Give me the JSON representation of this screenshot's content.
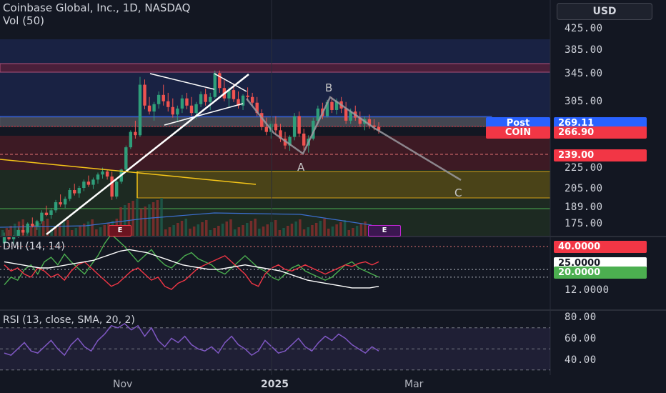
{
  "header": {
    "title": "Coinbase Global, Inc., 1D, NASDAQ",
    "volume_indicator": "Vol (50)",
    "dmi_title": "DMI (14, 14)",
    "rsi_title": "RSI (13, close, SMA, 20, 2)"
  },
  "currency_button": "USD",
  "badges": {
    "post_label": "Post",
    "post_price": "269.11",
    "coin_label": "COIN",
    "coin_price": "266.90",
    "level_price": "239.00",
    "earnings": "E"
  },
  "wave_labels": {
    "a": "A",
    "b": "B",
    "c": "C"
  },
  "colors": {
    "background": "#131722",
    "up": "#2f9e7a",
    "down": "#ef5350",
    "post_badge": "#2962ff",
    "coin_badge": "#f23645",
    "dmi_plus": "#4caf50",
    "dmi_minus": "#f23645",
    "adx": "#ffffff",
    "rsi": "#7e57c2"
  },
  "chart_data": [
    {
      "type": "candlestick",
      "title": "Coinbase Global, Inc., 1D, NASDAQ",
      "price_scale_ticks": [
        "425.00",
        "385.00",
        "345.00",
        "305.00",
        "225.00",
        "205.00",
        "189.00",
        "175.00"
      ],
      "x_ticks": [
        "Nov",
        "2025",
        "Mar"
      ],
      "log_scale": true,
      "last_price": 266.9,
      "post_market_price": 269.11,
      "marked_level": 239.0,
      "wave_points": {
        "B": 308,
        "A": 242,
        "C": 210
      },
      "ohlc_approx": [
        [
          160,
          168,
          158,
          165
        ],
        [
          165,
          170,
          162,
          163
        ],
        [
          163,
          166,
          160,
          165
        ],
        [
          165,
          172,
          164,
          170
        ],
        [
          170,
          174,
          166,
          168
        ],
        [
          168,
          176,
          167,
          175
        ],
        [
          175,
          180,
          172,
          173
        ],
        [
          173,
          178,
          170,
          177
        ],
        [
          177,
          186,
          175,
          184
        ],
        [
          184,
          190,
          181,
          182
        ],
        [
          182,
          188,
          179,
          186
        ],
        [
          186,
          195,
          184,
          193
        ],
        [
          193,
          200,
          189,
          191
        ],
        [
          191,
          198,
          188,
          196
        ],
        [
          196,
          206,
          194,
          204
        ],
        [
          204,
          210,
          199,
          201
        ],
        [
          201,
          208,
          197,
          206
        ],
        [
          206,
          214,
          203,
          212
        ],
        [
          212,
          218,
          207,
          209
        ],
        [
          209,
          216,
          205,
          214
        ],
        [
          214,
          221,
          210,
          219
        ],
        [
          219,
          226,
          215,
          222
        ],
        [
          222,
          224,
          214,
          217
        ],
        [
          217,
          222,
          195,
          198
        ],
        [
          198,
          214,
          196,
          212
        ],
        [
          212,
          225,
          210,
          224
        ],
        [
          224,
          250,
          222,
          248
        ],
        [
          248,
          268,
          246,
          266
        ],
        [
          266,
          280,
          258,
          262
        ],
        [
          262,
          342,
          260,
          330
        ],
        [
          330,
          338,
          295,
          300
        ],
        [
          300,
          312,
          288,
          292
        ],
        [
          292,
          305,
          280,
          302
        ],
        [
          302,
          320,
          296,
          315
        ],
        [
          315,
          330,
          300,
          306
        ],
        [
          306,
          318,
          292,
          298
        ],
        [
          298,
          310,
          284,
          288
        ],
        [
          288,
          300,
          278,
          296
        ],
        [
          296,
          315,
          290,
          310
        ],
        [
          310,
          318,
          295,
          300
        ],
        [
          300,
          312,
          286,
          290
        ],
        [
          290,
          305,
          282,
          302
        ],
        [
          302,
          320,
          298,
          316
        ],
        [
          316,
          324,
          300,
          305
        ],
        [
          305,
          318,
          294,
          312
        ],
        [
          312,
          352,
          310,
          348
        ],
        [
          348,
          352,
          318,
          325
        ],
        [
          325,
          340,
          306,
          310
        ],
        [
          310,
          326,
          298,
          322
        ],
        [
          322,
          332,
          305,
          309
        ],
        [
          309,
          320,
          296,
          300
        ],
        [
          300,
          316,
          294,
          314
        ],
        [
          314,
          326,
          306,
          312
        ],
        [
          312,
          318,
          300,
          304
        ],
        [
          304,
          312,
          286,
          290
        ],
        [
          290,
          295,
          268,
          272
        ],
        [
          272,
          284,
          262,
          266
        ],
        [
          266,
          280,
          258,
          276
        ],
        [
          276,
          286,
          262,
          268
        ],
        [
          268,
          276,
          254,
          258
        ],
        [
          258,
          266,
          246,
          250
        ],
        [
          250,
          262,
          244,
          260
        ],
        [
          260,
          290,
          256,
          286
        ],
        [
          286,
          292,
          260,
          264
        ],
        [
          264,
          270,
          245,
          250
        ],
        [
          250,
          262,
          242,
          258
        ],
        [
          258,
          284,
          256,
          280
        ],
        [
          280,
          300,
          276,
          296
        ],
        [
          296,
          304,
          282,
          286
        ],
        [
          286,
          308,
          284,
          305
        ],
        [
          305,
          312,
          290,
          294
        ],
        [
          294,
          310,
          288,
          306
        ],
        [
          306,
          312,
          290,
          296
        ],
        [
          296,
          305,
          276,
          280
        ],
        [
          280,
          296,
          276,
          292
        ],
        [
          292,
          300,
          280,
          284
        ],
        [
          284,
          292,
          272,
          276
        ],
        [
          276,
          286,
          268,
          282
        ],
        [
          282,
          288,
          270,
          274
        ],
        [
          274,
          282,
          268,
          272
        ],
        [
          272,
          278,
          264,
          268
        ]
      ]
    },
    {
      "type": "line",
      "title": "DMI (14, 14)",
      "levels": [
        40,
        25,
        20,
        12
      ],
      "tick_labels": [
        "40.0000",
        "25.0000",
        "20.0000",
        "12.0000"
      ],
      "series": [
        {
          "name": "+DI",
          "values": [
            15,
            20,
            18,
            25,
            28,
            22,
            30,
            33,
            28,
            35,
            30,
            26,
            22,
            28,
            34,
            42,
            48,
            44,
            40,
            35,
            30,
            34,
            38,
            32,
            28,
            26,
            30,
            34,
            36,
            32,
            30,
            28,
            24,
            22,
            26,
            30,
            34,
            30,
            26,
            24,
            20,
            18,
            22,
            26,
            28,
            24,
            22,
            20,
            18,
            20,
            24,
            28,
            30,
            26,
            24,
            22,
            20
          ]
        },
        {
          "name": "-DI",
          "values": [
            28,
            24,
            26,
            22,
            20,
            26,
            24,
            20,
            22,
            18,
            24,
            28,
            30,
            26,
            22,
            18,
            14,
            16,
            20,
            24,
            26,
            22,
            18,
            20,
            14,
            12,
            16,
            18,
            22,
            26,
            28,
            30,
            32,
            34,
            30,
            26,
            22,
            16,
            14,
            22,
            26,
            28,
            25,
            24,
            26,
            28,
            26,
            24,
            22,
            24,
            26,
            28,
            27,
            29,
            30,
            28,
            30
          ]
        },
        {
          "name": "ADX",
          "values": [
            30,
            29,
            28,
            27,
            26,
            26,
            27,
            28,
            29,
            30,
            31,
            33,
            35,
            37,
            38,
            37,
            36,
            34,
            32,
            30,
            28,
            27,
            26,
            25,
            25,
            26,
            27,
            28,
            27,
            26,
            25,
            24,
            22,
            20,
            18,
            17,
            16,
            15,
            14,
            13,
            13,
            13,
            14
          ]
        }
      ]
    },
    {
      "type": "line",
      "title": "RSI (13, close, SMA, 20, 2)",
      "ylim": [
        30,
        85
      ],
      "tick_labels": [
        "80.00",
        "60.00",
        "40.00"
      ],
      "series": [
        {
          "name": "RSI",
          "values": [
            46,
            44,
            50,
            56,
            48,
            46,
            52,
            58,
            50,
            44,
            54,
            60,
            52,
            48,
            58,
            64,
            72,
            70,
            74,
            68,
            72,
            62,
            70,
            58,
            52,
            60,
            56,
            62,
            54,
            50,
            48,
            52,
            46,
            56,
            62,
            54,
            50,
            44,
            48,
            58,
            52,
            46,
            48,
            54,
            60,
            52,
            48,
            56,
            62,
            58,
            64,
            60,
            54,
            50,
            46,
            52,
            48
          ]
        }
      ]
    }
  ]
}
